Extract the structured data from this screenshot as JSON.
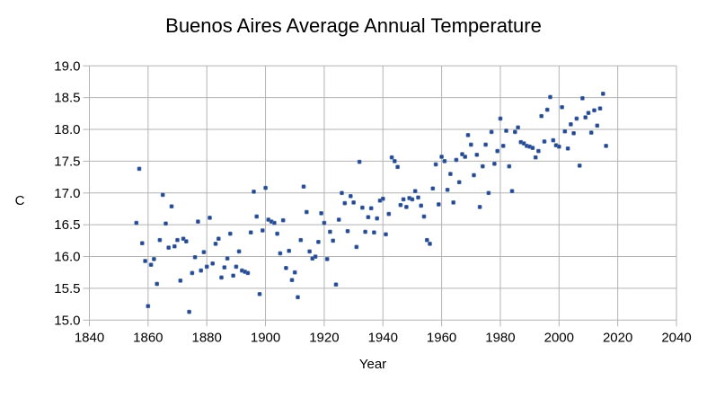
{
  "chart_data": {
    "type": "scatter",
    "title": "Buenos Aires Average Annual Temperature",
    "xlabel": "Year",
    "ylabel": "C",
    "xlim": [
      1840,
      2040
    ],
    "ylim": [
      15.0,
      19.0
    ],
    "x_ticks": [
      "1840",
      "1860",
      "1880",
      "1900",
      "1920",
      "1940",
      "1960",
      "1980",
      "2000",
      "2020",
      "2040"
    ],
    "y_ticks": [
      "15.0",
      "15.5",
      "16.0",
      "16.5",
      "17.0",
      "17.5",
      "18.0",
      "18.5",
      "19.0"
    ],
    "grid": true,
    "legend": "none",
    "colors": {
      "marker": "#26478b",
      "marker_edge": "#5577b5",
      "gridline": "#b3b3b3",
      "text": "#000000",
      "background": "#ffffff"
    },
    "series": [
      {
        "name": "Average annual temperature (C)",
        "points": [
          [
            1856,
            16.53
          ],
          [
            1857,
            17.38
          ],
          [
            1858,
            16.21
          ],
          [
            1859,
            15.93
          ],
          [
            1860,
            15.22
          ],
          [
            1861,
            15.87
          ],
          [
            1862,
            15.96
          ],
          [
            1863,
            15.57
          ],
          [
            1864,
            16.26
          ],
          [
            1865,
            16.97
          ],
          [
            1866,
            16.52
          ],
          [
            1867,
            16.14
          ],
          [
            1868,
            16.79
          ],
          [
            1869,
            16.16
          ],
          [
            1870,
            16.26
          ],
          [
            1871,
            15.62
          ],
          [
            1872,
            16.28
          ],
          [
            1873,
            16.24
          ],
          [
            1874,
            15.13
          ],
          [
            1875,
            15.74
          ],
          [
            1876,
            15.99
          ],
          [
            1877,
            16.55
          ],
          [
            1878,
            15.78
          ],
          [
            1879,
            16.07
          ],
          [
            1880,
            15.84
          ],
          [
            1881,
            16.61
          ],
          [
            1882,
            15.89
          ],
          [
            1883,
            16.2
          ],
          [
            1884,
            16.28
          ],
          [
            1885,
            15.67
          ],
          [
            1886,
            15.83
          ],
          [
            1887,
            15.97
          ],
          [
            1888,
            16.36
          ],
          [
            1889,
            15.7
          ],
          [
            1890,
            15.84
          ],
          [
            1891,
            16.08
          ],
          [
            1892,
            15.78
          ],
          [
            1893,
            15.76
          ],
          [
            1894,
            15.74
          ],
          [
            1895,
            16.38
          ],
          [
            1896,
            17.02
          ],
          [
            1897,
            16.63
          ],
          [
            1898,
            15.41
          ],
          [
            1899,
            16.41
          ],
          [
            1900,
            17.08
          ],
          [
            1901,
            16.58
          ],
          [
            1902,
            16.55
          ],
          [
            1903,
            16.53
          ],
          [
            1904,
            16.36
          ],
          [
            1905,
            16.05
          ],
          [
            1906,
            16.57
          ],
          [
            1907,
            15.82
          ],
          [
            1908,
            16.09
          ],
          [
            1909,
            15.63
          ],
          [
            1910,
            15.75
          ],
          [
            1911,
            15.36
          ],
          [
            1912,
            16.26
          ],
          [
            1913,
            17.1
          ],
          [
            1914,
            16.7
          ],
          [
            1915,
            16.08
          ],
          [
            1916,
            15.97
          ],
          [
            1917,
            16.0
          ],
          [
            1918,
            16.23
          ],
          [
            1919,
            16.68
          ],
          [
            1920,
            16.53
          ],
          [
            1921,
            15.96
          ],
          [
            1922,
            16.39
          ],
          [
            1923,
            16.25
          ],
          [
            1924,
            15.56
          ],
          [
            1925,
            16.58
          ],
          [
            1926,
            17.0
          ],
          [
            1927,
            16.84
          ],
          [
            1928,
            16.4
          ],
          [
            1929,
            16.95
          ],
          [
            1930,
            16.85
          ],
          [
            1931,
            16.15
          ],
          [
            1932,
            17.49
          ],
          [
            1933,
            16.77
          ],
          [
            1934,
            16.39
          ],
          [
            1935,
            16.62
          ],
          [
            1936,
            16.76
          ],
          [
            1937,
            16.38
          ],
          [
            1938,
            16.6
          ],
          [
            1939,
            16.88
          ],
          [
            1940,
            16.91
          ],
          [
            1941,
            16.35
          ],
          [
            1942,
            16.67
          ],
          [
            1943,
            17.56
          ],
          [
            1944,
            17.5
          ],
          [
            1945,
            17.41
          ],
          [
            1946,
            16.81
          ],
          [
            1947,
            16.9
          ],
          [
            1948,
            16.78
          ],
          [
            1949,
            16.92
          ],
          [
            1950,
            16.9
          ],
          [
            1951,
            17.03
          ],
          [
            1952,
            16.93
          ],
          [
            1953,
            16.8
          ],
          [
            1954,
            16.63
          ],
          [
            1955,
            16.26
          ],
          [
            1956,
            16.2
          ],
          [
            1957,
            17.07
          ],
          [
            1958,
            17.45
          ],
          [
            1959,
            16.82
          ],
          [
            1960,
            17.57
          ],
          [
            1961,
            17.5
          ],
          [
            1962,
            17.05
          ],
          [
            1963,
            17.3
          ],
          [
            1964,
            16.85
          ],
          [
            1965,
            17.52
          ],
          [
            1966,
            17.17
          ],
          [
            1967,
            17.61
          ],
          [
            1968,
            17.57
          ],
          [
            1969,
            17.91
          ],
          [
            1970,
            17.76
          ],
          [
            1971,
            17.28
          ],
          [
            1972,
            17.6
          ],
          [
            1973,
            16.78
          ],
          [
            1974,
            17.42
          ],
          [
            1975,
            17.76
          ],
          [
            1976,
            17.0
          ],
          [
            1977,
            17.96
          ],
          [
            1978,
            17.46
          ],
          [
            1979,
            17.66
          ],
          [
            1980,
            18.17
          ],
          [
            1981,
            17.74
          ],
          [
            1982,
            17.98
          ],
          [
            1983,
            17.42
          ],
          [
            1984,
            17.03
          ],
          [
            1985,
            17.96
          ],
          [
            1986,
            18.03
          ],
          [
            1987,
            17.8
          ],
          [
            1988,
            17.78
          ],
          [
            1989,
            17.74
          ],
          [
            1990,
            17.73
          ],
          [
            1991,
            17.71
          ],
          [
            1992,
            17.56
          ],
          [
            1993,
            17.66
          ],
          [
            1994,
            18.21
          ],
          [
            1995,
            17.81
          ],
          [
            1996,
            18.31
          ],
          [
            1997,
            18.51
          ],
          [
            1998,
            17.83
          ],
          [
            1999,
            17.75
          ],
          [
            2000,
            17.73
          ],
          [
            2001,
            18.35
          ],
          [
            2002,
            17.97
          ],
          [
            2003,
            17.7
          ],
          [
            2004,
            18.08
          ],
          [
            2005,
            17.94
          ],
          [
            2006,
            18.17
          ],
          [
            2007,
            17.43
          ],
          [
            2008,
            18.49
          ],
          [
            2009,
            18.19
          ],
          [
            2010,
            18.26
          ],
          [
            2011,
            17.95
          ],
          [
            2012,
            18.3
          ],
          [
            2013,
            18.06
          ],
          [
            2014,
            18.33
          ],
          [
            2015,
            18.56
          ],
          [
            2016,
            17.74
          ]
        ]
      }
    ]
  }
}
